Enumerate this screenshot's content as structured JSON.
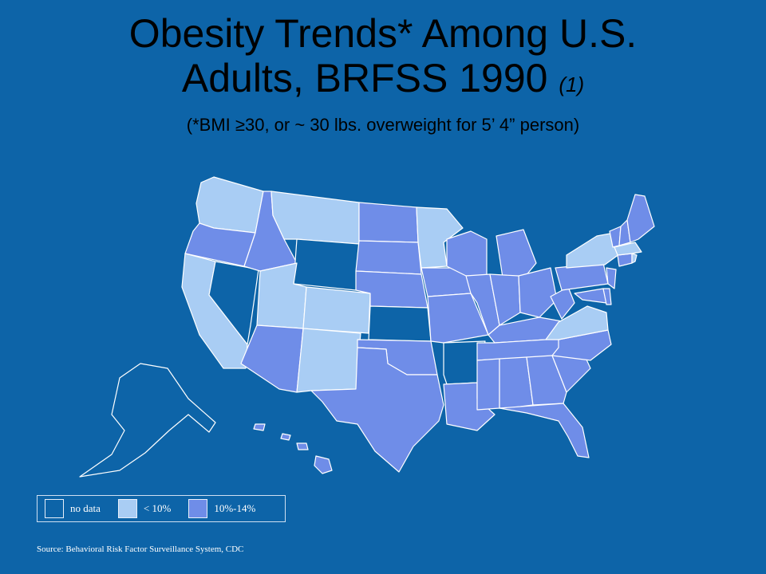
{
  "title": {
    "line1": "Obesity Trends* Among U.S.",
    "line2": "Adults, BRFSS 1990",
    "note": "(1)",
    "subtitle": "(*BMI ≥30, or ~ 30 lbs. overweight for 5’ 4” person)"
  },
  "colors": {
    "background": "#0d64a8",
    "no_data": "#0d64a8",
    "lt10": "#a9cdf4",
    "p10_14": "#6f8de8",
    "border": "#ffffff"
  },
  "legend": {
    "items": [
      {
        "label": "no data",
        "category": "no_data"
      },
      {
        "label": "< 10%",
        "category": "lt10"
      },
      {
        "label": "10%-14%",
        "category": "p10_14"
      }
    ]
  },
  "source": "Source: Behavioral Risk Factor Surveillance System, CDC",
  "map_data": {
    "type": "choropleth",
    "states": {
      "WA": "lt10",
      "OR": "p10_14",
      "CA": "lt10",
      "NV": "no_data",
      "ID": "p10_14",
      "MT": "lt10",
      "WY": "no_data",
      "UT": "lt10",
      "CO": "lt10",
      "AZ": "p10_14",
      "NM": "lt10",
      "ND": "p10_14",
      "SD": "p10_14",
      "NE": "p10_14",
      "KS": "no_data",
      "OK": "p10_14",
      "TX": "p10_14",
      "MN": "lt10",
      "IA": "p10_14",
      "MO": "p10_14",
      "AR": "no_data",
      "LA": "p10_14",
      "WI": "p10_14",
      "IL": "p10_14",
      "MI": "p10_14",
      "IN": "p10_14",
      "OH": "p10_14",
      "KY": "p10_14",
      "TN": "p10_14",
      "MS": "p10_14",
      "AL": "p10_14",
      "GA": "p10_14",
      "FL": "p10_14",
      "SC": "p10_14",
      "NC": "p10_14",
      "VA": "lt10",
      "WV": "p10_14",
      "PA": "p10_14",
      "NY": "lt10",
      "MD": "p10_14",
      "DE": "p10_14",
      "NJ": "p10_14",
      "CT": "p10_14",
      "RI": "lt10",
      "MA": "lt10",
      "VT": "p10_14",
      "NH": "p10_14",
      "ME": "p10_14",
      "AK": "no_data",
      "HI": "p10_14"
    }
  }
}
